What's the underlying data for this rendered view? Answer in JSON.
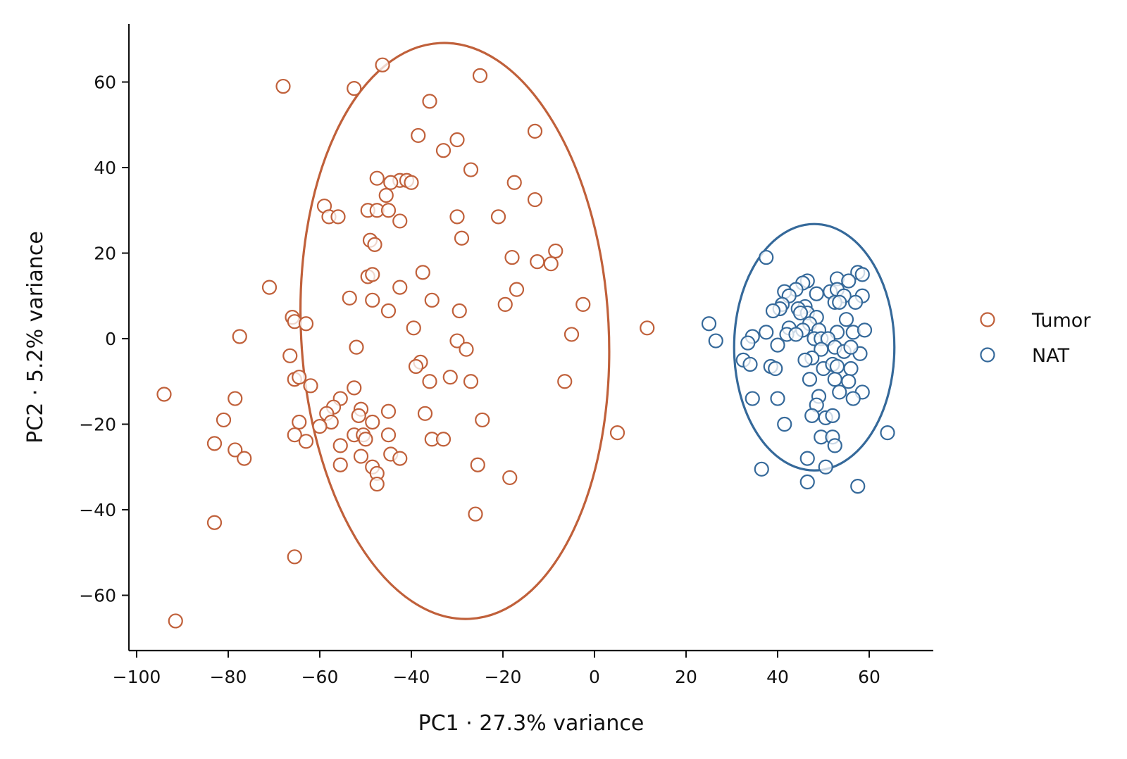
{
  "chart_data": {
    "type": "scatter",
    "title": "",
    "xlabel": "PC1 · 27.3% variance",
    "ylabel": "PC2 · 5.2% variance",
    "xlim": [
      -102,
      74
    ],
    "ylim": [
      -73,
      73
    ],
    "x_ticks": [
      -100,
      -80,
      -60,
      -40,
      -20,
      0,
      20,
      40,
      60
    ],
    "y_ticks": [
      -60,
      -40,
      -20,
      0,
      20,
      40,
      60
    ],
    "x_tick_labels": [
      "−100",
      "−80",
      "−60",
      "−40",
      "−20",
      "0",
      "20",
      "40",
      "60"
    ],
    "y_tick_labels": [
      "−60",
      "−40",
      "−20",
      "0",
      "20",
      "40",
      "60"
    ],
    "grid": false,
    "legend_position": "right",
    "series": [
      {
        "name": "Tumor",
        "color": "#c0603a",
        "marker": "open-circle",
        "ellipse": {
          "cx": -30.5,
          "cy": 1.8,
          "rx": 33.6,
          "ry": 67.4,
          "angle_deg": -3
        },
        "points": [
          [
            -68,
            59
          ],
          [
            -46.3,
            64
          ],
          [
            -52.5,
            58.5
          ],
          [
            -25,
            61.5
          ],
          [
            -36,
            55.5
          ],
          [
            -13,
            48.5
          ],
          [
            -38.5,
            47.5
          ],
          [
            -30,
            46.5
          ],
          [
            -33,
            44
          ],
          [
            -27,
            39.5
          ],
          [
            -47.5,
            37.5
          ],
          [
            -42.5,
            37
          ],
          [
            -44.5,
            36.5
          ],
          [
            -41,
            37
          ],
          [
            -40,
            36.5
          ],
          [
            -17.5,
            36.5
          ],
          [
            -45.5,
            33.5
          ],
          [
            -13,
            32.5
          ],
          [
            -59,
            31
          ],
          [
            -58,
            28.5
          ],
          [
            -56,
            28.5
          ],
          [
            -49.5,
            30
          ],
          [
            -47.5,
            30
          ],
          [
            -45,
            30
          ],
          [
            -30,
            28.5
          ],
          [
            -21,
            28.5
          ],
          [
            -42.5,
            27.5
          ],
          [
            -49,
            23
          ],
          [
            -48,
            22
          ],
          [
            -29,
            23.5
          ],
          [
            -8.5,
            20.5
          ],
          [
            -18,
            19
          ],
          [
            -12.5,
            18
          ],
          [
            -9.5,
            17.5
          ],
          [
            -37.5,
            15.5
          ],
          [
            -49.5,
            14.5
          ],
          [
            -48.5,
            15
          ],
          [
            -71,
            12
          ],
          [
            -42.5,
            12
          ],
          [
            -17,
            11.5
          ],
          [
            -53.5,
            9.5
          ],
          [
            -48.5,
            9
          ],
          [
            -35.5,
            9
          ],
          [
            -45,
            6.5
          ],
          [
            -29.5,
            6.5
          ],
          [
            -19.5,
            8
          ],
          [
            -2.5,
            8
          ],
          [
            -66,
            5
          ],
          [
            -65.5,
            4
          ],
          [
            -63,
            3.5
          ],
          [
            -39.5,
            2.5
          ],
          [
            11.5,
            2.5
          ],
          [
            -5,
            1
          ],
          [
            -77.5,
            0.5
          ],
          [
            -30,
            -0.5
          ],
          [
            -52,
            -2
          ],
          [
            -28,
            -2.5
          ],
          [
            -66.5,
            -4
          ],
          [
            -38,
            -5.5
          ],
          [
            -39,
            -6.5
          ],
          [
            -31.5,
            -9
          ],
          [
            -36,
            -10
          ],
          [
            -27,
            -10
          ],
          [
            -6.5,
            -10
          ],
          [
            -65.5,
            -9.5
          ],
          [
            -64.5,
            -9
          ],
          [
            -62,
            -11
          ],
          [
            -52.5,
            -11.5
          ],
          [
            -94,
            -13
          ],
          [
            -78.5,
            -14
          ],
          [
            -55.5,
            -14
          ],
          [
            -57,
            -16
          ],
          [
            -51,
            -16.5
          ],
          [
            -51.5,
            -18
          ],
          [
            -58.5,
            -17.5
          ],
          [
            -45,
            -17
          ],
          [
            -37,
            -17.5
          ],
          [
            -81,
            -19
          ],
          [
            -64.5,
            -19.5
          ],
          [
            -57.5,
            -19.5
          ],
          [
            -48.5,
            -19.5
          ],
          [
            -24.5,
            -19
          ],
          [
            -60,
            -20.5
          ],
          [
            -83,
            -24.5
          ],
          [
            -65.5,
            -22.5
          ],
          [
            -63,
            -24
          ],
          [
            -52.5,
            -22.5
          ],
          [
            -50.5,
            -22.5
          ],
          [
            -50,
            -23.5
          ],
          [
            -45,
            -22.5
          ],
          [
            -35.5,
            -23.5
          ],
          [
            -33,
            -23.5
          ],
          [
            5,
            -22
          ],
          [
            -78.5,
            -26
          ],
          [
            -55.5,
            -25
          ],
          [
            -44.5,
            -27
          ],
          [
            -42.5,
            -28
          ],
          [
            -76.5,
            -28
          ],
          [
            -51,
            -27.5
          ],
          [
            -55.5,
            -29.5
          ],
          [
            -48.5,
            -30
          ],
          [
            -47.5,
            -31.5
          ],
          [
            -25.5,
            -29.5
          ],
          [
            -18.5,
            -32.5
          ],
          [
            -47.5,
            -34
          ],
          [
            -83,
            -43
          ],
          [
            -26,
            -41
          ],
          [
            -65.5,
            -51
          ],
          [
            -91.5,
            -66
          ]
        ]
      },
      {
        "name": "NAT",
        "color": "#35699a",
        "marker": "open-circle",
        "ellipse": {
          "cx": 48,
          "cy": -2,
          "rx": 17.5,
          "ry": 28.8,
          "angle_deg": 0
        },
        "points": [
          [
            37.5,
            19
          ],
          [
            57.5,
            15.5
          ],
          [
            58.5,
            15
          ],
          [
            53,
            14
          ],
          [
            55.5,
            13.5
          ],
          [
            46.5,
            13.5
          ],
          [
            45.5,
            13
          ],
          [
            44,
            11.5
          ],
          [
            41.5,
            11
          ],
          [
            42.5,
            10
          ],
          [
            48.5,
            10.5
          ],
          [
            51.5,
            11
          ],
          [
            53,
            11.5
          ],
          [
            54.5,
            10
          ],
          [
            58.5,
            10
          ],
          [
            52.5,
            8.5
          ],
          [
            53.5,
            8.5
          ],
          [
            57,
            8.5
          ],
          [
            41,
            8
          ],
          [
            46,
            7.5
          ],
          [
            40.5,
            7
          ],
          [
            39,
            6.5
          ],
          [
            44.5,
            7
          ],
          [
            46.5,
            6
          ],
          [
            45,
            6
          ],
          [
            48.5,
            5
          ],
          [
            55,
            4.5
          ],
          [
            25,
            3.5
          ],
          [
            47,
            3.5
          ],
          [
            42.5,
            2.5
          ],
          [
            45.5,
            2
          ],
          [
            49,
            2
          ],
          [
            53,
            1.5
          ],
          [
            56.5,
            1.5
          ],
          [
            59,
            2
          ],
          [
            37.5,
            1.5
          ],
          [
            34.5,
            0.5
          ],
          [
            42,
            1
          ],
          [
            44,
            1
          ],
          [
            48,
            0
          ],
          [
            49.5,
            0
          ],
          [
            51,
            0
          ],
          [
            26.5,
            -0.5
          ],
          [
            33.5,
            -1
          ],
          [
            40,
            -1.5
          ],
          [
            49.5,
            -2.5
          ],
          [
            52.5,
            -2
          ],
          [
            54.5,
            -3
          ],
          [
            58,
            -3.5
          ],
          [
            56,
            -2
          ],
          [
            47.5,
            -4.5
          ],
          [
            46,
            -5
          ],
          [
            32.5,
            -5
          ],
          [
            34,
            -6
          ],
          [
            38.5,
            -6.5
          ],
          [
            39.5,
            -7
          ],
          [
            50,
            -7
          ],
          [
            52,
            -6
          ],
          [
            53,
            -6.5
          ],
          [
            56,
            -7
          ],
          [
            47,
            -9.5
          ],
          [
            52.5,
            -9.5
          ],
          [
            55.5,
            -10
          ],
          [
            53.5,
            -12.5
          ],
          [
            58.5,
            -12.5
          ],
          [
            56.5,
            -14
          ],
          [
            49,
            -13.5
          ],
          [
            34.5,
            -14
          ],
          [
            40,
            -14
          ],
          [
            48.5,
            -15.5
          ],
          [
            47.5,
            -18
          ],
          [
            50.5,
            -18.5
          ],
          [
            52,
            -18
          ],
          [
            41.5,
            -20
          ],
          [
            64,
            -22
          ],
          [
            49.5,
            -23
          ],
          [
            52,
            -23
          ],
          [
            52.5,
            -25
          ],
          [
            46.5,
            -28
          ],
          [
            50.5,
            -30
          ],
          [
            36.5,
            -30.5
          ],
          [
            46.5,
            -33.5
          ],
          [
            57.5,
            -34.5
          ]
        ]
      }
    ]
  }
}
